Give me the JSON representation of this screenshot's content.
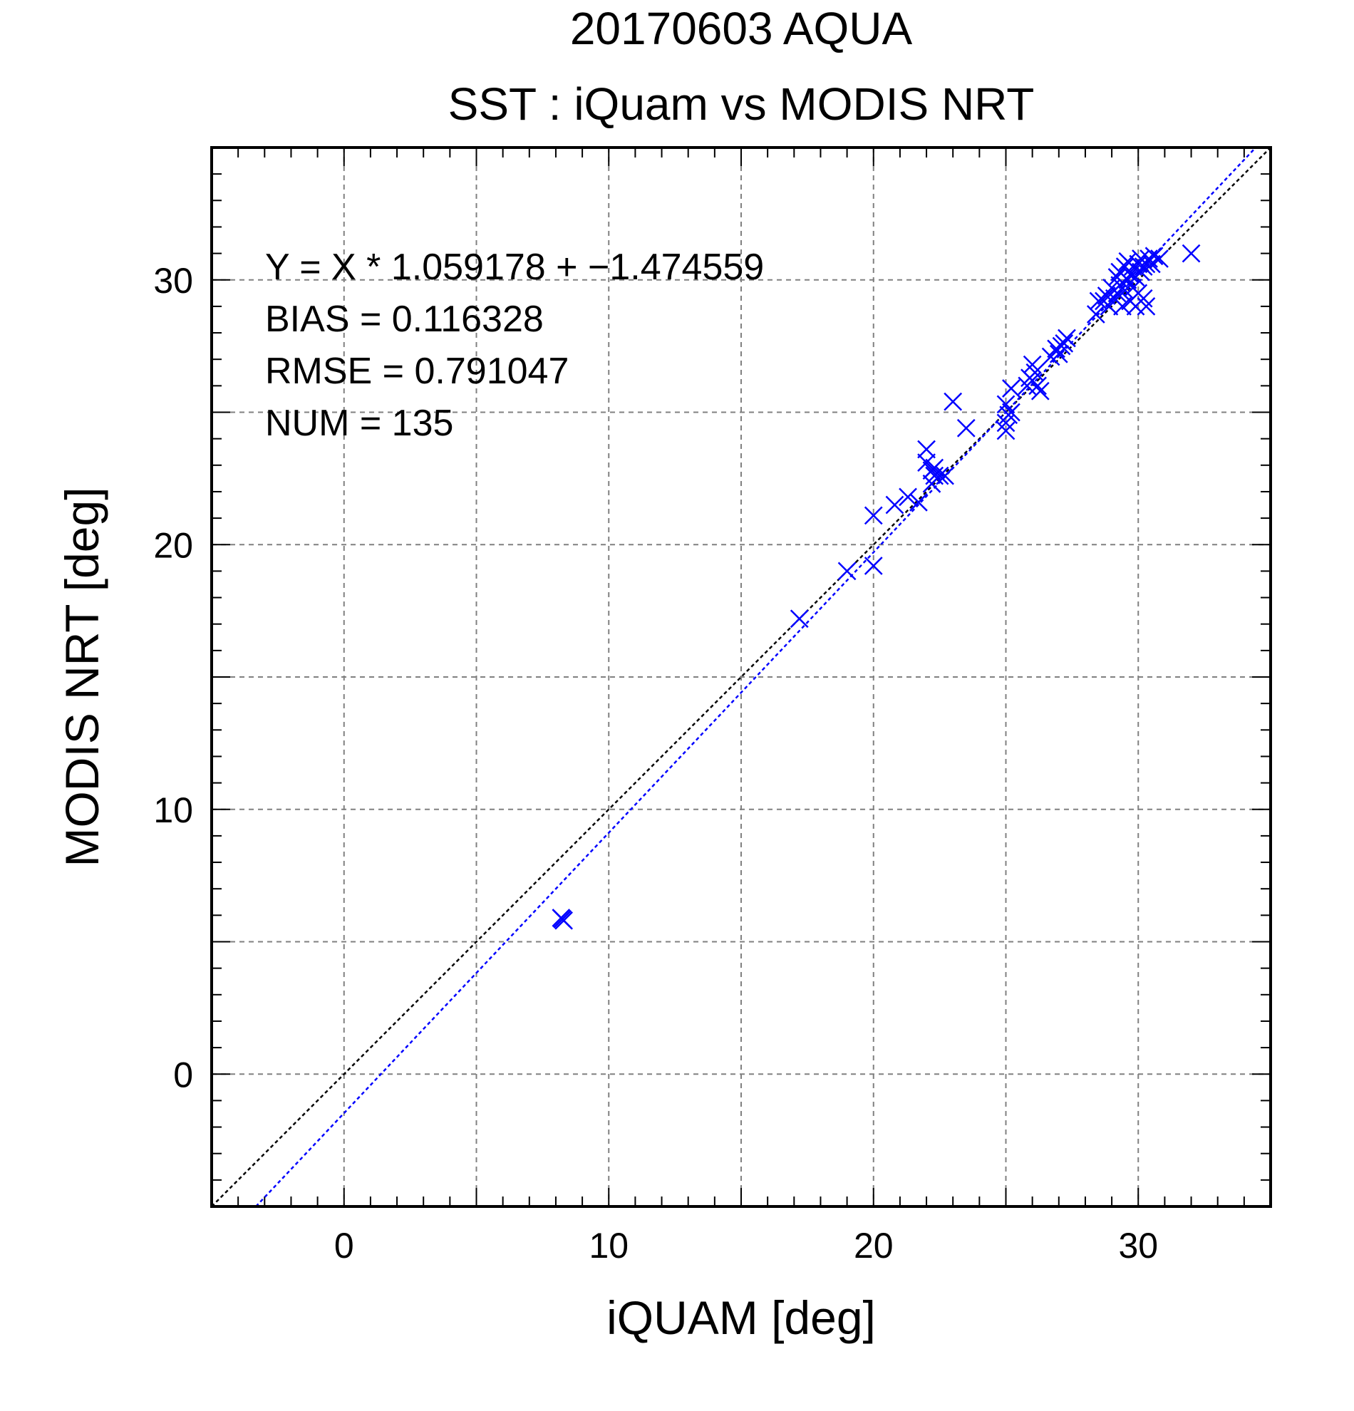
{
  "chart_data": {
    "type": "scatter",
    "title": "20170603 AQUA",
    "subtitle": "SST : iQuam vs MODIS NRT",
    "xlabel": "iQUAM [deg]",
    "ylabel": "MODIS NRT [deg]",
    "xlim": [
      -5,
      35
    ],
    "ylim": [
      -5,
      35
    ],
    "xticks": [
      0,
      10,
      20,
      30
    ],
    "yticks": [
      0,
      10,
      20,
      30
    ],
    "grid": true,
    "annotations": [
      "Y = X * 1.059178 + −1.474559",
      "BIAS = 0.116328",
      "RMSE = 0.791047",
      "NUM = 135"
    ],
    "colors": {
      "points": "#0000ff",
      "fit_line": "#0000ff",
      "identity_line": "#000000",
      "grid": "#808080"
    },
    "fit": {
      "slope": 1.059178,
      "intercept": -1.474559
    },
    "identity": {
      "slope": 1,
      "intercept": 0
    },
    "points": [
      [
        8.2,
        5.9
      ],
      [
        8.3,
        5.8
      ],
      [
        8.25,
        5.85
      ],
      [
        17.2,
        17.2
      ],
      [
        19.0,
        19.0
      ],
      [
        20.0,
        21.1
      ],
      [
        20.0,
        19.2
      ],
      [
        20.8,
        21.5
      ],
      [
        21.3,
        21.8
      ],
      [
        21.7,
        21.6
      ],
      [
        22.0,
        23.6
      ],
      [
        22.0,
        23.1
      ],
      [
        22.2,
        22.8
      ],
      [
        22.2,
        22.3
      ],
      [
        22.3,
        22.6
      ],
      [
        22.5,
        22.6
      ],
      [
        22.7,
        22.6
      ],
      [
        22.3,
        22.9
      ],
      [
        23.0,
        25.4
      ],
      [
        23.5,
        24.4
      ],
      [
        25.0,
        24.3
      ],
      [
        25.0,
        24.6
      ],
      [
        25.0,
        25.3
      ],
      [
        25.2,
        25.0
      ],
      [
        25.2,
        25.9
      ],
      [
        25.1,
        24.9
      ],
      [
        25.8,
        26.0
      ],
      [
        25.9,
        26.3
      ],
      [
        26.0,
        26.8
      ],
      [
        26.0,
        26.2
      ],
      [
        26.2,
        26.0
      ],
      [
        26.3,
        25.8
      ],
      [
        26.1,
        26.5
      ],
      [
        26.7,
        27.1
      ],
      [
        26.9,
        27.4
      ],
      [
        27.1,
        27.5
      ],
      [
        27.3,
        27.8
      ],
      [
        27.0,
        27.2
      ],
      [
        27.2,
        27.6
      ],
      [
        28.4,
        28.7
      ],
      [
        28.5,
        29.2
      ],
      [
        28.7,
        29.2
      ],
      [
        28.8,
        29.4
      ],
      [
        29.0,
        29.7
      ],
      [
        28.9,
        29.0
      ],
      [
        29.1,
        29.3
      ],
      [
        29.2,
        29.5
      ],
      [
        29.2,
        30.1
      ],
      [
        29.3,
        29.8
      ],
      [
        29.3,
        30.3
      ],
      [
        29.4,
        29.0
      ],
      [
        29.4,
        29.9
      ],
      [
        29.5,
        30.5
      ],
      [
        29.5,
        29.6
      ],
      [
        29.6,
        30.0
      ],
      [
        29.6,
        30.7
      ],
      [
        29.7,
        29.2
      ],
      [
        29.7,
        30.2
      ],
      [
        29.8,
        30.5
      ],
      [
        29.8,
        29.7
      ],
      [
        29.9,
        30.1
      ],
      [
        29.9,
        29.0
      ],
      [
        30.0,
        30.6
      ],
      [
        30.0,
        29.5
      ],
      [
        30.1,
        30.3
      ],
      [
        30.1,
        30.8
      ],
      [
        30.2,
        29.3
      ],
      [
        30.2,
        30.5
      ],
      [
        30.3,
        30.6
      ],
      [
        30.3,
        29.0
      ],
      [
        30.4,
        30.8
      ],
      [
        30.5,
        30.6
      ],
      [
        30.6,
        30.9
      ],
      [
        30.8,
        30.8
      ],
      [
        32.0,
        31.0
      ]
    ]
  }
}
